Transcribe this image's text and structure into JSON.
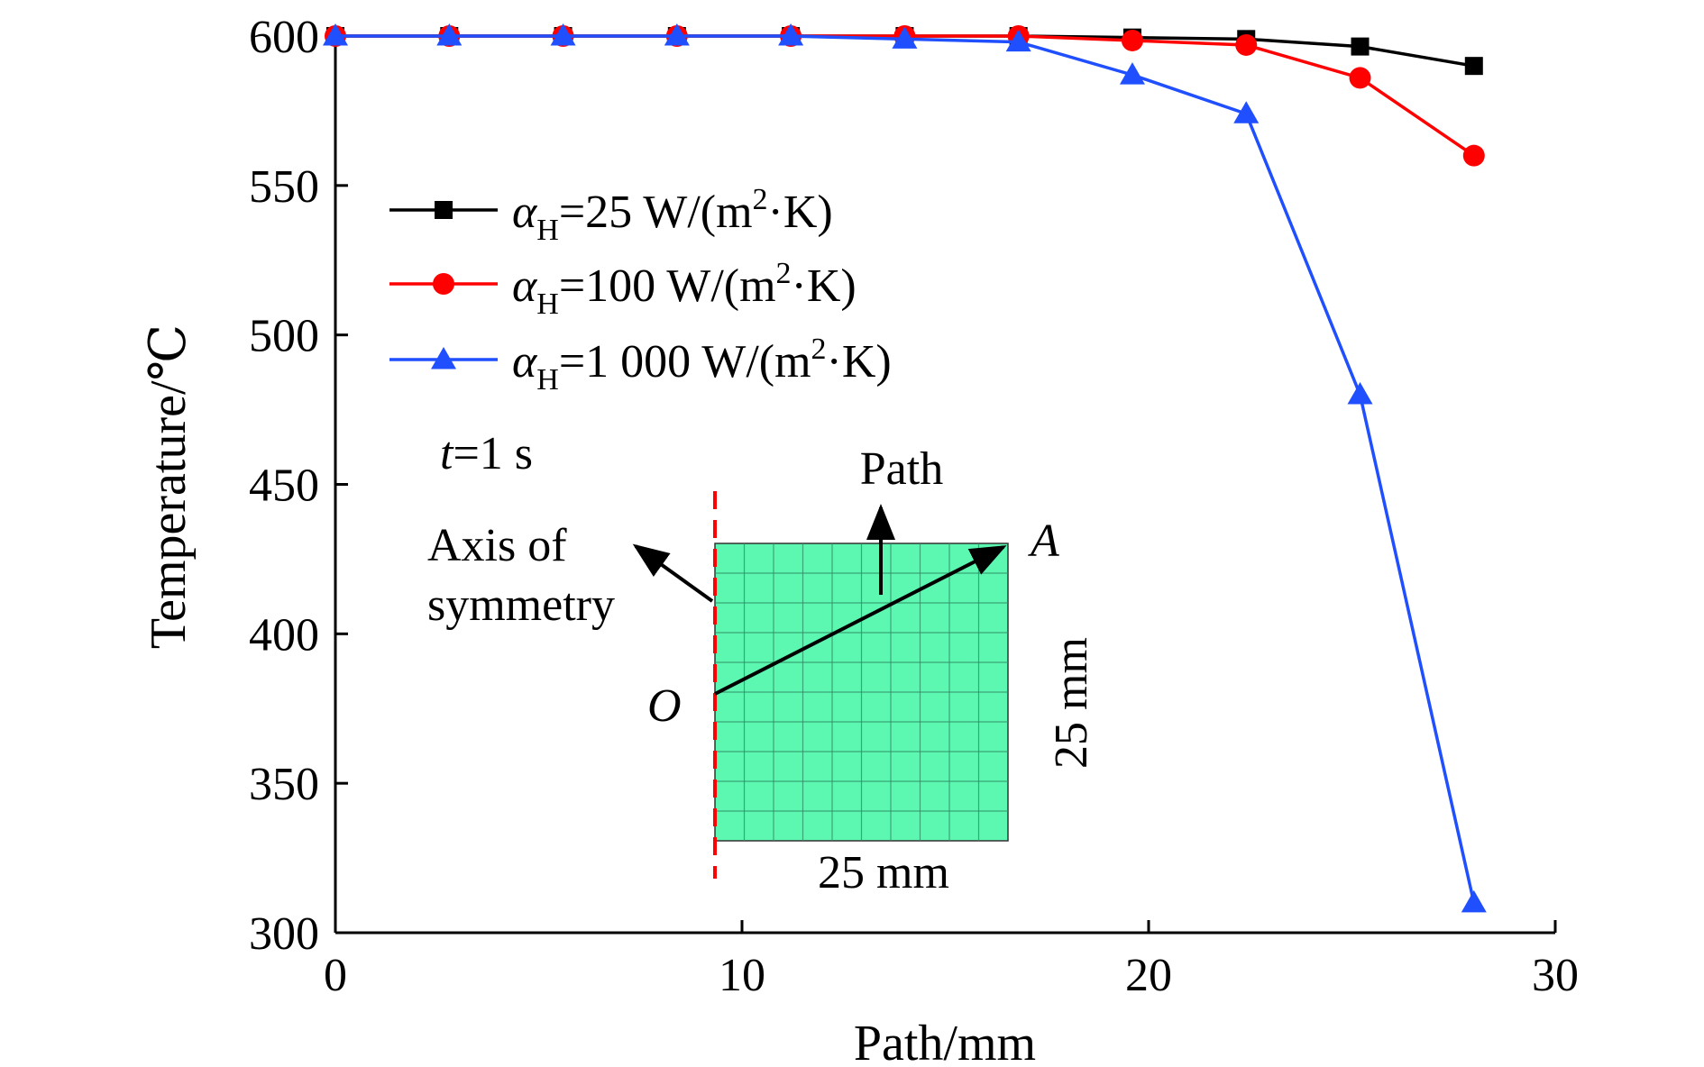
{
  "chart_data": {
    "type": "line",
    "xlabel": "Path/mm",
    "ylabel": "Temperature/℃",
    "xlim": [
      0,
      30
    ],
    "ylim": [
      300,
      600
    ],
    "xticks": [
      0,
      10,
      20,
      30
    ],
    "yticks": [
      300,
      350,
      400,
      450,
      500,
      550,
      600
    ],
    "grid": false,
    "legend_position": "upper-left",
    "x": [
      0,
      2.8,
      5.6,
      8.4,
      11.2,
      14.0,
      16.8,
      19.6,
      22.4,
      25.2,
      28.0
    ],
    "series": [
      {
        "name_prefix": "α",
        "name_sub": "H",
        "name_value": "=25 W/(m",
        "name_sup": "2",
        "name_suffix": "·K)",
        "color": "#000000",
        "marker": "square",
        "values": [
          600,
          600,
          600,
          600,
          600,
          600,
          600,
          599.5,
          599,
          596.5,
          590
        ]
      },
      {
        "name_prefix": "α",
        "name_sub": "H",
        "name_value": "=100 W/(m",
        "name_sup": "2",
        "name_suffix": "·K)",
        "color": "#ff0000",
        "marker": "circle",
        "values": [
          600,
          600,
          600,
          600,
          600,
          600,
          600,
          598.5,
          597,
          586,
          560
        ]
      },
      {
        "name_prefix": "α",
        "name_sub": "H",
        "name_value": "=1 000 W/(m",
        "name_sup": "2",
        "name_suffix": "·K)",
        "color": "#1f4fff",
        "marker": "triangle",
        "values": [
          600,
          600,
          600,
          600,
          600,
          599,
          598,
          587,
          574,
          480,
          310
        ]
      }
    ],
    "annotation_time_var": "t",
    "annotation_time_value": "=1 s",
    "inset": {
      "path_label": "Path",
      "point_a": "A",
      "point_o": "O",
      "axis_label_line1": "Axis of",
      "axis_label_line2": "symmetry",
      "width_label": "25 mm",
      "height_label": "25 mm",
      "fill_color": "#5cf7b1",
      "axis_line_color": "#ff0000"
    }
  }
}
